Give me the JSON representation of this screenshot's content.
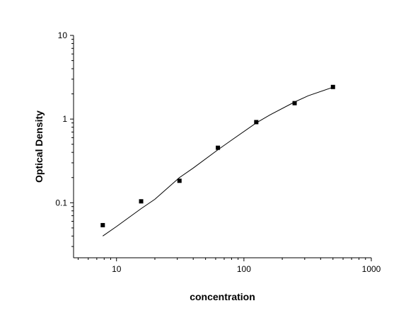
{
  "chart_data": {
    "type": "scatter",
    "title": "",
    "xlabel": "concentration",
    "ylabel": "Optical Density",
    "x_scale": "log",
    "y_scale": "log",
    "xlim": [
      4.6,
      1000
    ],
    "ylim": [
      0.022,
      10
    ],
    "x_ticks": [
      10,
      100,
      1000
    ],
    "x_tick_labels": [
      "10",
      "100",
      "1000"
    ],
    "y_ticks": [
      0.1,
      1,
      10
    ],
    "y_tick_labels": [
      "0.1",
      "1",
      "10"
    ],
    "grid": false,
    "legend": "none",
    "series": [
      {
        "x": [
          7.8,
          15.6,
          31.2,
          62.5,
          125,
          250,
          500
        ],
        "y": [
          0.054,
          0.104,
          0.183,
          0.454,
          0.92,
          1.55,
          2.42
        ]
      }
    ],
    "fit_curve": {
      "type": "line",
      "x": [
        7.8,
        10,
        15.6,
        20,
        31.2,
        40,
        62.5,
        80,
        125,
        160,
        250,
        320,
        500
      ],
      "y": [
        0.04,
        0.052,
        0.085,
        0.11,
        0.2,
        0.26,
        0.43,
        0.56,
        0.9,
        1.12,
        1.6,
        1.9,
        2.4
      ]
    },
    "colors": {
      "marker": "#000000",
      "line": "#000000",
      "axis": "#000000"
    }
  }
}
